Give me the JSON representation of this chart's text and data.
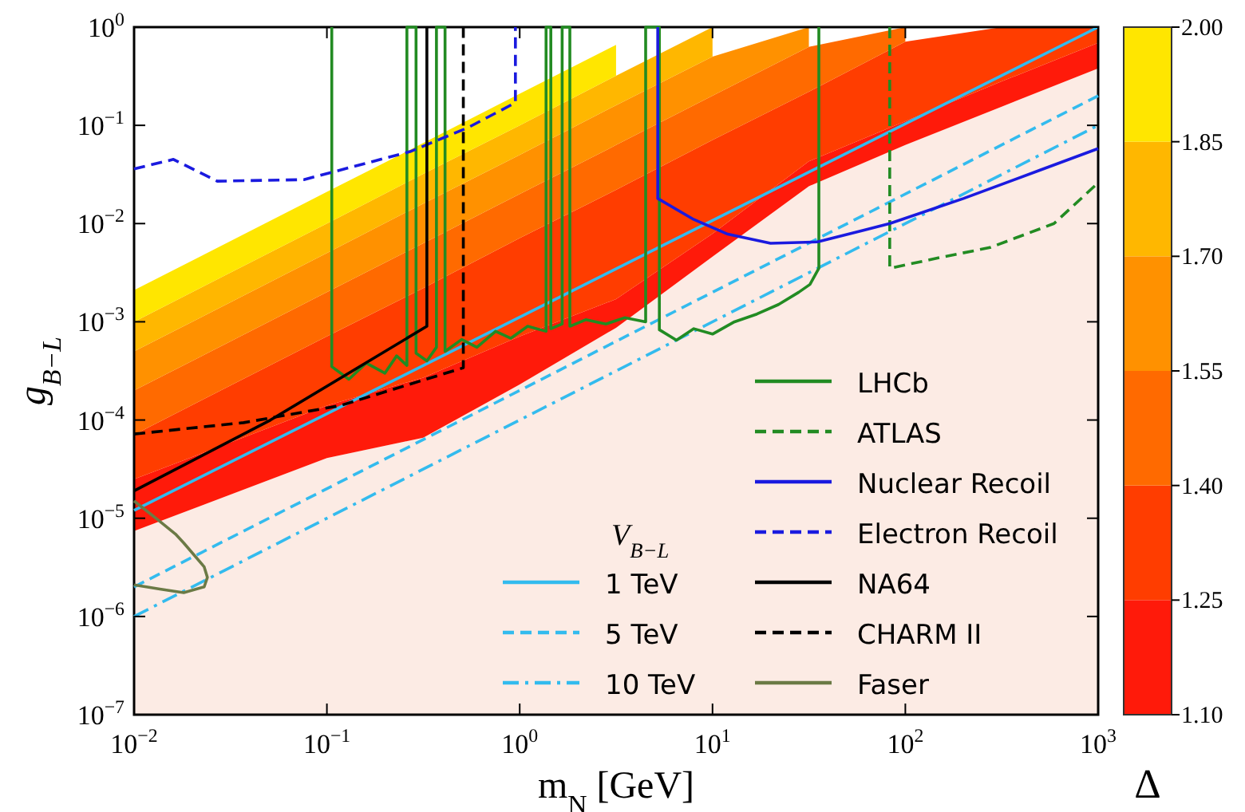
{
  "chart_data": {
    "type": "line",
    "log": "xy",
    "stacked": true,
    "xlabel": "m$_{N}$ [GeV]",
    "ylabel": "g$_{B−L}$",
    "clabel": "Δ",
    "legend_title": "V$_{B−L}$",
    "legend": "bottom right",
    "xlim": [
      0.01,
      1000
    ],
    "ylim": [
      1e-07,
      1
    ],
    "xticks": [
      {
        "value": 0.01,
        "label": "10$^{−2}$"
      },
      {
        "value": 0.1,
        "label": "10$^{−1}$"
      },
      {
        "value": 1,
        "label": "10$^{0}$"
      },
      {
        "value": 10,
        "label": "10$^{1}$"
      },
      {
        "value": 100,
        "label": "10$^{2}$"
      },
      {
        "value": 1000,
        "label": "10$^{3}$"
      }
    ],
    "yticks": [
      {
        "value": 1e-07,
        "label": "10$^{−7}$"
      },
      {
        "value": 1e-06,
        "label": "10$^{−6}$"
      },
      {
        "value": 1e-05,
        "label": "10$^{−5}$"
      },
      {
        "value": 0.0001,
        "label": "10$^{−4}$"
      },
      {
        "value": 0.001,
        "label": "10$^{−3}$"
      },
      {
        "value": 0.01,
        "label": "10$^{−2}$"
      },
      {
        "value": 0.1,
        "label": "10$^{−1}$"
      },
      {
        "value": 1,
        "label": "10$^{0}$"
      }
    ],
    "clim": [
      1.1,
      2.0
    ],
    "cticks": [
      {
        "value": 1.1,
        "label": "1.10"
      },
      {
        "value": 1.25,
        "label": "1.25"
      },
      {
        "value": 1.4,
        "label": "1.40"
      },
      {
        "value": 1.55,
        "label": "1.55"
      },
      {
        "value": 1.7,
        "label": "1.70"
      },
      {
        "value": 1.85,
        "label": "1.85"
      },
      {
        "value": 2.0,
        "label": "2.00"
      }
    ],
    "x": [
      0.01,
      0.1,
      0.316,
      1,
      3.16,
      10,
      31.6,
      100,
      316,
      1000
    ],
    "series": [
      {
        "type": "area",
        "color": "#fcebe4",
        "values": [
          7.4e-06,
          4.1e-05,
          6.6e-05,
          0.00023,
          0.00087,
          0.0046,
          0.024,
          0.063,
          0.155,
          0.38
        ]
      },
      {
        "type": "area",
        "color": "#ff1a0a",
        "values": [
          1.76e-05,
          9.9e-05,
          0.000204,
          0.00048,
          0.00083,
          0.0033,
          0.019,
          0.047,
          0.125,
          0.31
        ]
      },
      {
        "type": "area",
        "color": "#ff3d00",
        "values": [
          4.6e-05,
          0.00057,
          0.00193,
          0.00639,
          0.0203,
          0.0631,
          0.177,
          0.6,
          0.72,
          0.31
        ]
      },
      {
        "type": "area",
        "color": "#ff6a00",
        "values": [
          0.000129,
          0.00129,
          0.0041,
          0.0129,
          0.041,
          0.129,
          0.41,
          0.29,
          null,
          null
        ]
      },
      {
        "type": "area",
        "color": "#ff9100",
        "values": [
          0.0003,
          0.003,
          0.0097,
          0.03,
          0.097,
          0.3,
          0.37,
          null,
          null,
          null
        ]
      },
      {
        "type": "area",
        "color": "#ffb700",
        "values": [
          0.0005,
          0.005,
          0.016,
          0.05,
          0.16,
          0.5,
          null,
          null,
          null,
          null
        ]
      },
      {
        "type": "area",
        "color": "#ffe600",
        "values": [
          0.0011,
          0.011,
          0.034,
          0.11,
          0.34,
          null,
          null,
          null,
          null,
          null
        ]
      },
      {
        "name": "1 TeV",
        "color": "#33bbee",
        "line_style": "solid",
        "x": [
          0.01,
          1000
        ],
        "values": [
          1.2e-05,
          1
        ]
      },
      {
        "name": "5 TeV",
        "color": "#33bbee",
        "line_style": "dashed",
        "x": [
          0.01,
          1000
        ],
        "values": [
          2e-06,
          0.2
        ]
      },
      {
        "name": "10 TeV",
        "color": "#33bbee",
        "line_style": "dashdot",
        "x": [
          0.01,
          1000
        ],
        "values": [
          1e-06,
          0.1
        ]
      },
      {
        "name": "LHCb",
        "color": "#228b22",
        "line_style": "solid",
        "x": [
          0.106,
          0.106,
          0.13,
          0.16,
          0.2,
          0.23,
          0.26,
          0.26,
          0.29,
          0.29,
          0.33,
          0.37,
          0.37,
          0.41,
          0.41,
          0.5,
          0.6,
          0.75,
          0.9,
          1.1,
          1.37,
          1.37,
          1.45,
          1.45,
          1.66,
          1.66,
          1.82,
          1.82,
          2.2,
          2.8,
          3.5,
          4.5,
          4.5,
          5.3,
          5.3,
          6.5,
          8,
          10,
          13,
          17,
          22,
          28,
          32,
          35.6,
          35.6
        ],
        "values": [
          1,
          0.00035,
          0.00026,
          0.00038,
          0.0003,
          0.00045,
          0.00036,
          1,
          1,
          0.00048,
          0.0004,
          0.00055,
          1,
          1,
          0.0005,
          0.00066,
          0.00055,
          0.0008,
          0.00068,
          0.0009,
          0.0008,
          1,
          1,
          0.00085,
          0.00095,
          1,
          1,
          0.0009,
          0.00105,
          0.00095,
          0.0011,
          0.001,
          1,
          1,
          0.00083,
          0.00065,
          0.00085,
          0.00075,
          0.001,
          0.0012,
          0.0015,
          0.002,
          0.0024,
          0.0035,
          1
        ]
      },
      {
        "name": "ATLAS",
        "color": "#228b22",
        "line_style": "dashed",
        "x": [
          83,
          83,
          150,
          275,
          590,
          1000
        ],
        "values": [
          1,
          0.0035,
          0.0045,
          0.0057,
          0.01,
          0.026
        ]
      },
      {
        "name": "Nuclear Recoil",
        "color": "#1a1adf",
        "line_style": "solid",
        "x": [
          5.2,
          5.2,
          8,
          12,
          20,
          35,
          60,
          83,
          200,
          500,
          1000
        ],
        "values": [
          1,
          0.018,
          0.011,
          0.0078,
          0.0063,
          0.0065,
          0.0085,
          0.01,
          0.018,
          0.035,
          0.058
        ]
      },
      {
        "name": "Electron Recoil",
        "color": "#1a1adf",
        "line_style": "dashed",
        "x": [
          0.01,
          0.016,
          0.027,
          0.076,
          0.27,
          0.54,
          0.95,
          0.95
        ],
        "values": [
          0.036,
          0.045,
          0.027,
          0.028,
          0.054,
          0.095,
          0.17,
          1
        ]
      },
      {
        "name": "NA64",
        "color": "#000000",
        "line_style": "solid",
        "x": [
          0.01,
          0.051,
          0.33,
          0.33
        ],
        "values": [
          1.9e-05,
          0.0001,
          0.0009,
          1
        ]
      },
      {
        "name": "CHARM II",
        "color": "#000000",
        "line_style": "dashed",
        "x": [
          0.01,
          0.037,
          0.117,
          0.51,
          0.51
        ],
        "values": [
          7.2e-05,
          9.4e-05,
          0.00014,
          0.00034,
          1
        ]
      },
      {
        "name": "Faser",
        "color": "#6b7a45",
        "line_style": "solid",
        "x": [
          0.01,
          0.0136,
          0.0164,
          0.0181,
          0.0231,
          0.024,
          0.0231,
          0.0181,
          0.0164,
          0.0136,
          0.01
        ],
        "values": [
          1.5e-05,
          9.3e-06,
          6.9e-06,
          5.6e-06,
          3.2e-06,
          2.5e-06,
          2e-06,
          1.75e-06,
          1.8e-06,
          1.9e-06,
          2.1e-06
        ]
      }
    ]
  }
}
